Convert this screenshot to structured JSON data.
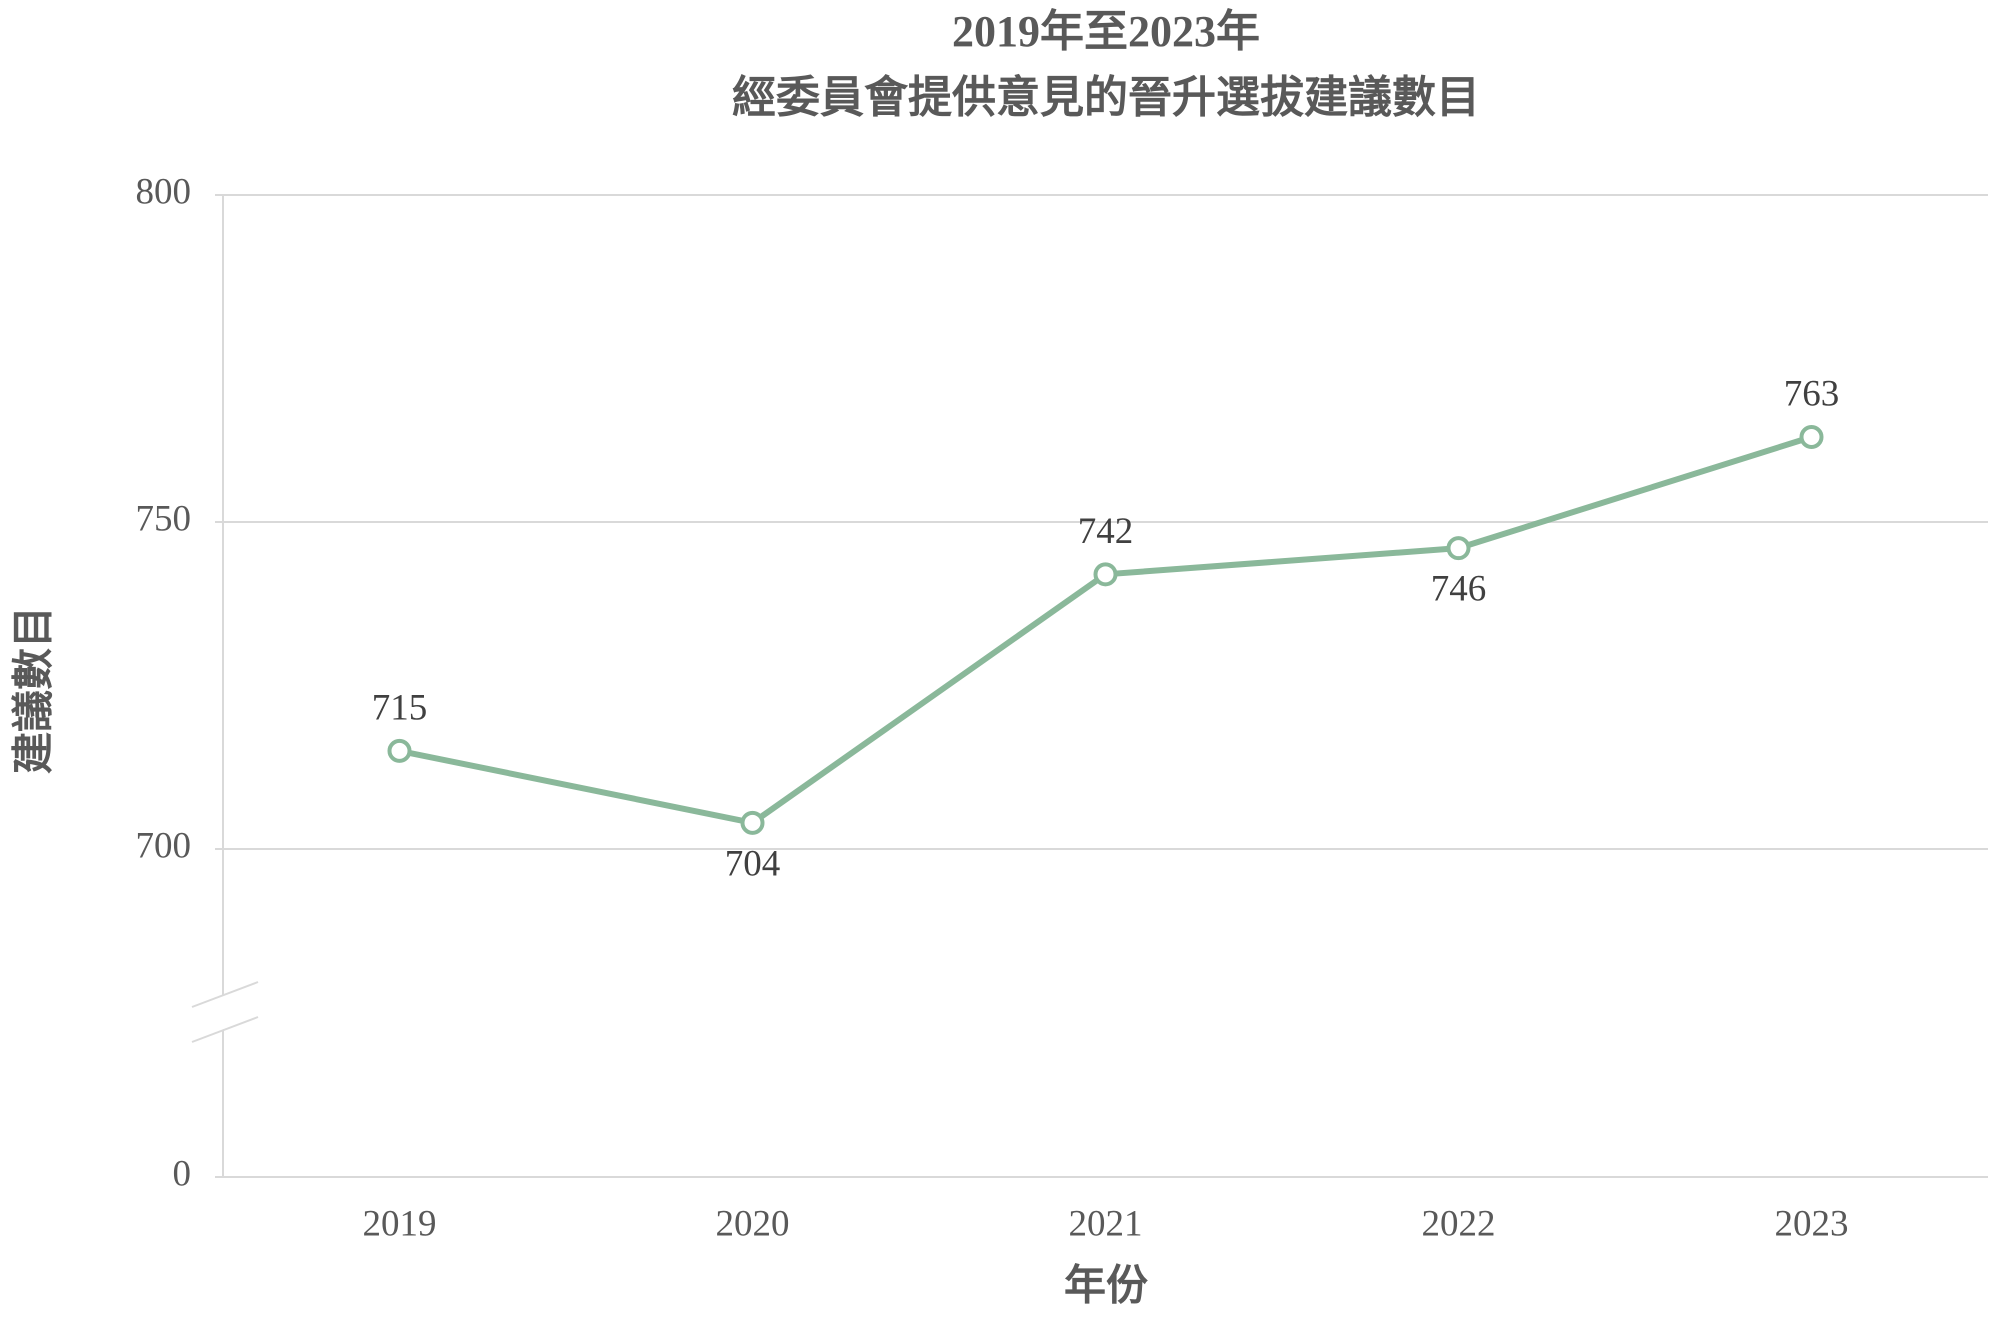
{
  "chart_data": {
    "type": "line",
    "title": [
      "2019年至2023年",
      "經委員會提供意見的晉升選拔建議數目"
    ],
    "x_label": "年份",
    "y_label": "建議數目",
    "categories": [
      "2019",
      "2020",
      "2021",
      "2022",
      "2023"
    ],
    "values": [
      715,
      704,
      742,
      746,
      763
    ],
    "value_label_position": [
      "above",
      "below",
      "above",
      "below",
      "above"
    ],
    "color": "#8ab89a",
    "ylim": [
      0,
      800
    ],
    "y_break": [
      0,
      700
    ],
    "yticks": [
      0,
      700,
      750,
      800
    ],
    "grid": true
  }
}
